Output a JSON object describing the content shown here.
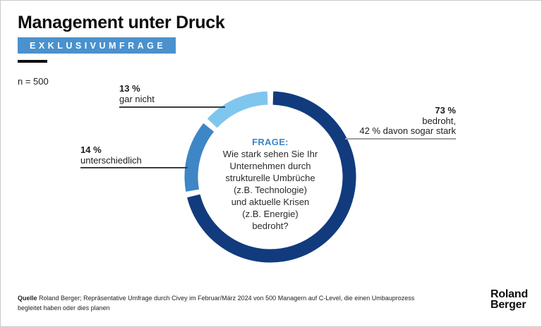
{
  "page": {
    "title": "Management unter Druck",
    "badge": "EXKLUSIVUMFRAGE",
    "sample_label": "n = 500"
  },
  "chart_data": {
    "type": "pie",
    "subtype": "donut",
    "title": "Management unter Druck",
    "n": 500,
    "center_label": "FRAGE:",
    "center_question": "Wie stark sehen Sie Ihr\nUnternehmen durch\nstrukturelle Umbrüche\n(z.B. Technologie)\nund aktuelle Krisen\n(z.B. Energie)\nbedroht?",
    "segments": [
      {
        "label": "bedroht, 42 % davon sogar stark",
        "value": 73,
        "color": "#113B7D"
      },
      {
        "label": "unterschiedlich",
        "value": 14,
        "color": "#3E86C6"
      },
      {
        "label": "gar nicht",
        "value": 13,
        "color": "#7FC6EE"
      }
    ],
    "layout": {
      "start_angle_deg": 2,
      "gap_deg": 4,
      "clockwise": true,
      "center": [
        382,
        250
      ],
      "ring_mid_radius": 112,
      "ring_thickness": 19
    }
  },
  "labels": {
    "gar_nicht": {
      "pct": "13 %",
      "text": "gar nicht"
    },
    "unterschiedlich": {
      "pct": "14 %",
      "text": "unterschiedlich"
    },
    "bedroht": {
      "pct": "73 %",
      "line1": "bedroht,",
      "line2": "42 % davon sogar stark"
    }
  },
  "source": {
    "label": "Quelle",
    "text": "Roland Berger; Repräsentative Umfrage durch Civey im Februar/März 2024 von 500 Managern auf C-Level, die einen Umbauprozess\nbegleitet haben oder dies planen"
  },
  "logo": {
    "line1": "Roland",
    "line2": "Berger"
  },
  "colors": {
    "navy": "#113B7D",
    "blue": "#3E86C6",
    "light_blue": "#7FC6EE",
    "badge_blue": "#4A91CD",
    "accent_text": "#3A86C8"
  }
}
